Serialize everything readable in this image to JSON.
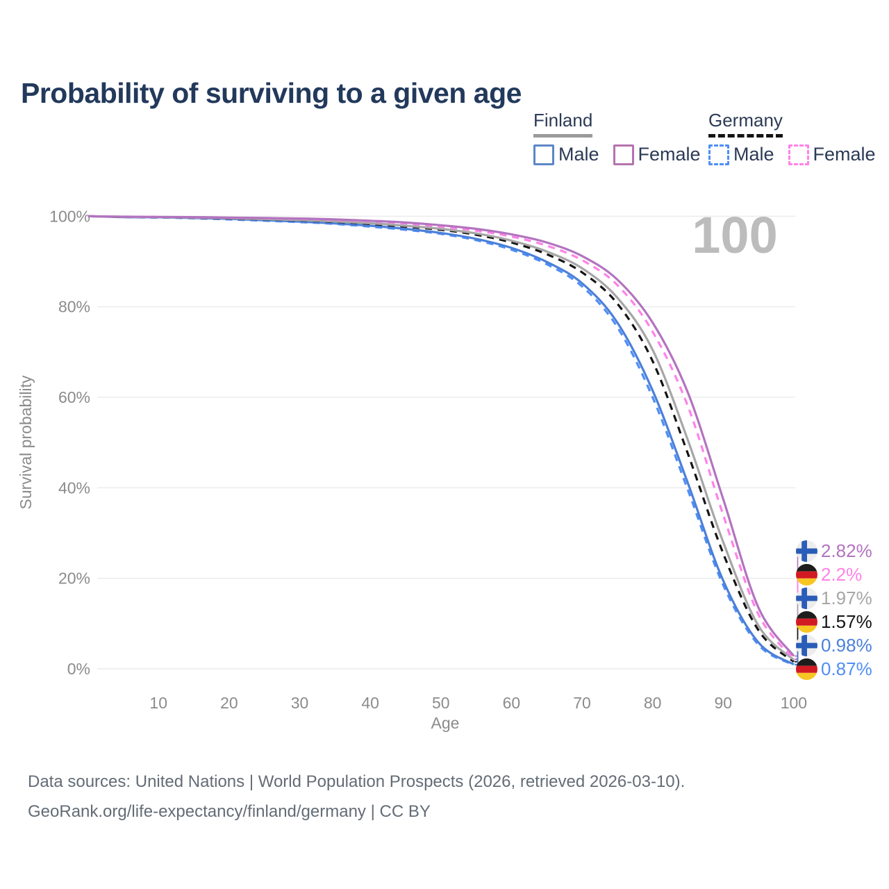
{
  "title": "Probability of surviving to a given age",
  "watermark": "100",
  "legend": {
    "finland": {
      "label": "Finland",
      "male": "Male",
      "female": "Female"
    },
    "germany": {
      "label": "Germany",
      "male": "Male",
      "female": "Female"
    }
  },
  "chart_data": {
    "type": "line",
    "title": "Probability of surviving to a given age",
    "xlabel": "Age",
    "ylabel": "Survival probability",
    "xlim": [
      0,
      100
    ],
    "ylim": [
      0,
      100
    ],
    "grid": "horizontal-only",
    "x_ticks": [
      10,
      20,
      30,
      40,
      50,
      60,
      70,
      80,
      90,
      100
    ],
    "y_tick_labels": [
      "0%",
      "20%",
      "40%",
      "60%",
      "80%",
      "100%"
    ],
    "hover_age_indicator": "100",
    "colors": {
      "grid": "#ebebeb",
      "axis_text": "#8b8b8b",
      "watermark": "#bcbcbc",
      "title": "#22395b",
      "footer": "#636c76"
    },
    "x": [
      0,
      5,
      10,
      15,
      20,
      25,
      30,
      35,
      40,
      45,
      50,
      55,
      60,
      65,
      70,
      75,
      80,
      85,
      90,
      95,
      100
    ],
    "series": [
      {
        "name": "Finland Female",
        "country": "Finland",
        "sex": "Female",
        "style": "solid",
        "color": "#b373bf",
        "end_label": "2.82%",
        "flag": "finland-flag-icon",
        "values": [
          100,
          99.9,
          99.85,
          99.8,
          99.7,
          99.6,
          99.5,
          99.3,
          99.0,
          98.6,
          98.0,
          97.2,
          96.0,
          94.2,
          91.2,
          86.0,
          76.5,
          61.0,
          37.5,
          13.5,
          2.82
        ]
      },
      {
        "name": "Germany Female",
        "country": "Germany",
        "sex": "Female",
        "style": "dashed",
        "color": "#ff82e8",
        "end_label": "2.2%",
        "flag": "germany-flag-icon",
        "values": [
          100,
          99.9,
          99.85,
          99.75,
          99.65,
          99.55,
          99.4,
          99.2,
          98.9,
          98.4,
          97.7,
          96.8,
          95.5,
          93.5,
          90.3,
          84.8,
          74.5,
          58.0,
          34.0,
          12.0,
          2.2
        ]
      },
      {
        "name": "Finland Both sexes",
        "country": "Finland",
        "sex": "Total",
        "style": "solid",
        "color": "#a6a6a6",
        "end_label": "1.97%",
        "flag": "finland-flag-icon",
        "values": [
          100,
          99.85,
          99.8,
          99.7,
          99.55,
          99.35,
          99.15,
          98.85,
          98.45,
          97.9,
          97.2,
          96.2,
          94.6,
          92.2,
          88.5,
          82.0,
          70.5,
          50.5,
          28.0,
          9.5,
          1.97
        ]
      },
      {
        "name": "Germany Both sexes",
        "country": "Germany",
        "sex": "Total",
        "style": "dashed",
        "color": "#141414",
        "end_label": "1.57%",
        "flag": "germany-flag-icon",
        "values": [
          100,
          99.85,
          99.8,
          99.65,
          99.5,
          99.3,
          99.1,
          98.75,
          98.3,
          97.7,
          97.0,
          95.9,
          94.2,
          91.6,
          87.6,
          80.7,
          68.0,
          47.5,
          25.5,
          8.5,
          1.57
        ]
      },
      {
        "name": "Finland Male",
        "country": "Finland",
        "sex": "Male",
        "style": "solid",
        "color": "#4b80da",
        "end_label": "0.98%",
        "flag": "finland-flag-icon",
        "values": [
          100,
          99.8,
          99.75,
          99.6,
          99.4,
          99.1,
          98.8,
          98.4,
          97.9,
          97.2,
          96.3,
          95.0,
          93.0,
          89.9,
          85.2,
          76.5,
          61.5,
          41.0,
          19.5,
          5.8,
          0.98
        ]
      },
      {
        "name": "Germany Male",
        "country": "Germany",
        "sex": "Male",
        "style": "dashed",
        "color": "#4f8ef5",
        "end_label": "0.87%",
        "flag": "germany-flag-icon",
        "values": [
          100,
          99.8,
          99.7,
          99.55,
          99.3,
          99.0,
          98.7,
          98.3,
          97.7,
          97.0,
          96.1,
          94.7,
          92.6,
          89.4,
          84.5,
          75.5,
          60.0,
          39.5,
          18.5,
          5.3,
          0.87
        ]
      }
    ]
  },
  "footer": {
    "line1": "Data sources: United Nations | World Population Prospects (2026, retrieved 2026-03-10).",
    "line2": "GeoRank.org/life-expectancy/finland/germany | CC BY"
  }
}
